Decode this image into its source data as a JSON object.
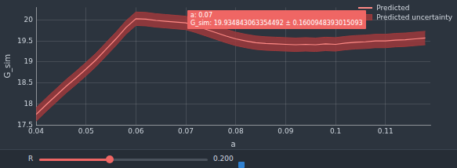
{
  "chart_data": {
    "type": "line",
    "x_label": "a",
    "y_label": "G_sim",
    "x": [
      0.04,
      0.042,
      0.044,
      0.046,
      0.048,
      0.05,
      0.052,
      0.054,
      0.056,
      0.058,
      0.06,
      0.062,
      0.064,
      0.066,
      0.068,
      0.07,
      0.072,
      0.074,
      0.076,
      0.078,
      0.08,
      0.082,
      0.084,
      0.086,
      0.088,
      0.09,
      0.092,
      0.094,
      0.096,
      0.098,
      0.1,
      0.102,
      0.104,
      0.106,
      0.108,
      0.11,
      0.112,
      0.114,
      0.116,
      0.118
    ],
    "series": [
      {
        "name": "Predicted",
        "color": "#ff8a86",
        "line_style": "solid",
        "values": [
          17.75,
          17.98,
          18.2,
          18.42,
          18.62,
          18.83,
          19.05,
          19.3,
          19.55,
          19.82,
          20.03,
          20.02,
          19.99,
          19.97,
          19.95,
          19.93,
          19.86,
          19.78,
          19.7,
          19.62,
          19.55,
          19.5,
          19.46,
          19.44,
          19.43,
          19.42,
          19.41,
          19.42,
          19.41,
          19.43,
          19.42,
          19.45,
          19.47,
          19.48,
          19.5,
          19.5,
          19.52,
          19.53,
          19.55,
          19.57
        ]
      },
      {
        "name": "Predicted uncertainty",
        "color": "#9e3a3c",
        "type": "band",
        "lower": [
          17.59,
          17.82,
          18.04,
          18.26,
          18.46,
          18.67,
          18.89,
          19.14,
          19.39,
          19.66,
          19.87,
          19.86,
          19.83,
          19.81,
          19.79,
          19.77,
          19.7,
          19.62,
          19.54,
          19.46,
          19.39,
          19.34,
          19.3,
          19.28,
          19.27,
          19.26,
          19.25,
          19.26,
          19.25,
          19.27,
          19.26,
          19.29,
          19.31,
          19.32,
          19.34,
          19.34,
          19.36,
          19.37,
          19.39,
          19.41
        ],
        "upper": [
          17.91,
          18.14,
          18.36,
          18.58,
          18.78,
          18.99,
          19.21,
          19.46,
          19.71,
          19.98,
          20.19,
          20.18,
          20.15,
          20.13,
          20.11,
          20.09,
          20.02,
          19.94,
          19.86,
          19.78,
          19.71,
          19.66,
          19.62,
          19.6,
          19.59,
          19.58,
          19.57,
          19.58,
          19.57,
          19.59,
          19.58,
          19.61,
          19.63,
          19.64,
          19.66,
          19.66,
          19.68,
          19.69,
          19.71,
          19.73
        ]
      }
    ],
    "xlim": [
      0.04,
      0.119
    ],
    "ylim": [
      17.5,
      20.3
    ],
    "xticks": [
      0.04,
      0.05,
      0.06,
      0.07,
      0.08,
      0.09,
      0.1,
      0.11
    ],
    "yticks": [
      17.5,
      18,
      18.5,
      19,
      19.5,
      20
    ],
    "grid": true,
    "legend": "upper right",
    "annotations": [
      {
        "x": 0.07,
        "y": 19.93,
        "text": [
          "a: 0.07",
          "G_sim: 19.934843063354492 ± 0.1600948393015093"
        ]
      }
    ]
  },
  "slider": {
    "label": "R",
    "value": "0.200"
  }
}
